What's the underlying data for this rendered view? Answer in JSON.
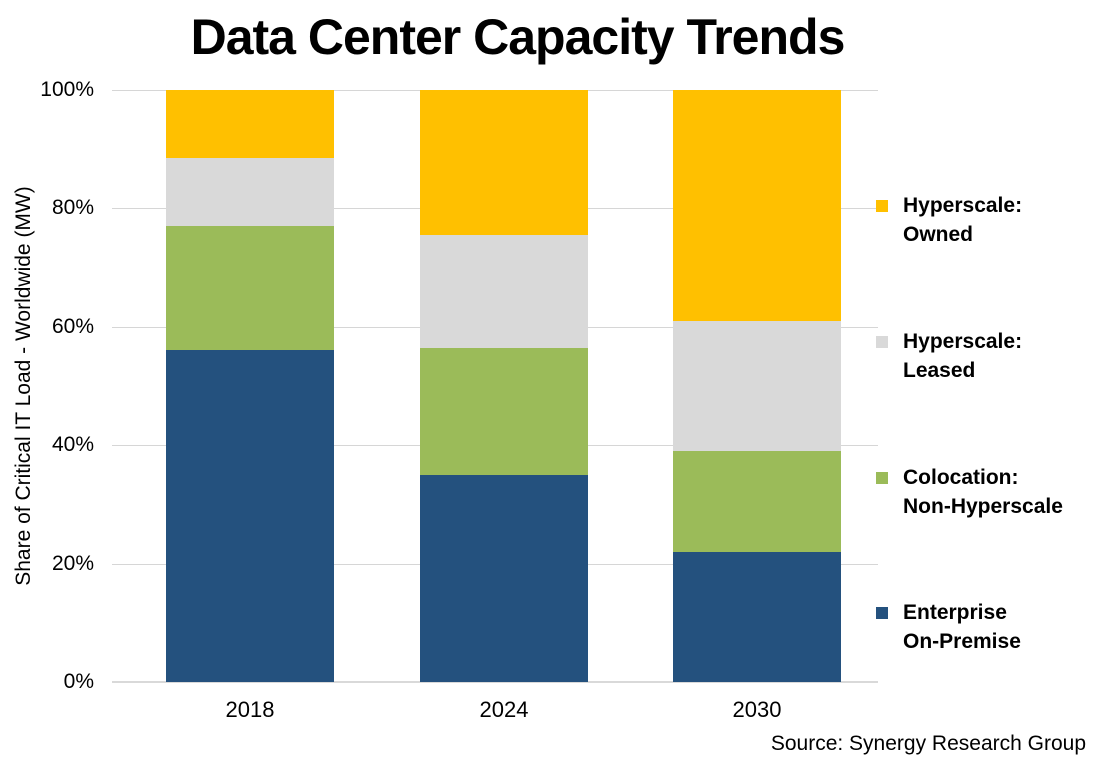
{
  "title": "Data Center Capacity Trends",
  "y_axis": {
    "label": "Share of Critical IT Load - Worldwide (MW)",
    "ticks": [
      "100%",
      "80%",
      "60%",
      "40%",
      "20%",
      "0%"
    ]
  },
  "x_axis": {
    "labels": [
      "2018",
      "2024",
      "2030"
    ]
  },
  "source": "Source: Synergy Research Group",
  "legend": {
    "items": [
      {
        "lines": [
          "Hyperscale:",
          "Owned"
        ],
        "series_index": 0
      },
      {
        "lines": [
          "Hyperscale:",
          "Leased"
        ],
        "series_index": 1
      },
      {
        "lines": [
          "Colocation:",
          "Non-Hyperscale"
        ],
        "series_index": 2
      },
      {
        "lines": [
          "Enterprise",
          "On-Premise"
        ],
        "series_index": 3
      }
    ]
  },
  "colors": {
    "hyperscale_owned": "#FFC000",
    "hyperscale_leased": "#D9D9D9",
    "colocation_non_hyperscale": "#9BBB59",
    "enterprise_on_premise": "#24517E",
    "gridline": "#D6D6D6",
    "axis_line": "#D9D9D9",
    "text": "#000000",
    "background": "#FFFFFF"
  },
  "chart_data": {
    "type": "bar",
    "stacked": true,
    "categories": [
      "2018",
      "2024",
      "2030"
    ],
    "series": [
      {
        "name": "Hyperscale: Owned",
        "color": "#FFC000",
        "values": [
          11.5,
          24.5,
          39
        ]
      },
      {
        "name": "Hyperscale: Leased",
        "color": "#D9D9D9",
        "values": [
          11.5,
          19,
          22
        ]
      },
      {
        "name": "Colocation: Non-Hyperscale",
        "color": "#9BBB59",
        "values": [
          21,
          21.5,
          17
        ]
      },
      {
        "name": "Enterprise On-Premise",
        "color": "#24517E",
        "values": [
          56,
          35,
          22
        ]
      }
    ],
    "title": "Data Center Capacity Trends",
    "xlabel": "",
    "ylabel": "Share of Critical IT Load - Worldwide (MW)",
    "ylim": [
      0,
      100
    ],
    "y_tick_format": "percent",
    "grid": true,
    "legend_position": "right"
  }
}
